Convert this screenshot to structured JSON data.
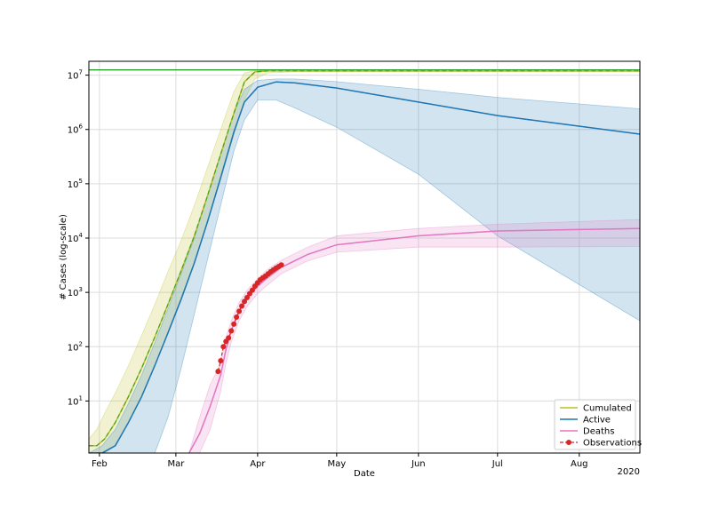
{
  "chart_data": {
    "type": "line",
    "xlabel": "Date",
    "ylabel": "# Cases (log-scale)",
    "year_label": "2020",
    "y_scale": "log",
    "ylim": [
      1.1,
      18000000
    ],
    "xlim": [
      "2020-01-28",
      "2020-08-24"
    ],
    "grid": true,
    "legend_position": "lower-right",
    "x_ticks": [
      {
        "date": "2020-02-01",
        "label": "Feb"
      },
      {
        "date": "2020-03-01",
        "label": "Mar"
      },
      {
        "date": "2020-04-01",
        "label": "Apr"
      },
      {
        "date": "2020-05-01",
        "label": "May"
      },
      {
        "date": "2020-06-01",
        "label": "Jun"
      },
      {
        "date": "2020-07-01",
        "label": "Jul"
      },
      {
        "date": "2020-08-01",
        "label": "Aug"
      }
    ],
    "y_ticks": [
      {
        "value": 10,
        "base": "10",
        "exp": "1"
      },
      {
        "value": 100,
        "base": "10",
        "exp": "2"
      },
      {
        "value": 1000,
        "base": "10",
        "exp": "3"
      },
      {
        "value": 10000,
        "base": "10",
        "exp": "4"
      },
      {
        "value": 100000,
        "base": "10",
        "exp": "5"
      },
      {
        "value": 1000000,
        "base": "10",
        "exp": "6"
      },
      {
        "value": 10000000,
        "base": "10",
        "exp": "7"
      }
    ],
    "population_line": {
      "value": 12500000,
      "color": "#2ca02c"
    },
    "series": [
      {
        "name": "Cumulated",
        "color": "#bcbd22",
        "dashed_color": "#2ca02c",
        "x": [
          "2020-01-28",
          "2020-01-31",
          "2020-02-03",
          "2020-02-07",
          "2020-02-12",
          "2020-02-17",
          "2020-02-22",
          "2020-02-27",
          "2020-03-03",
          "2020-03-08",
          "2020-03-13",
          "2020-03-18",
          "2020-03-23",
          "2020-03-27",
          "2020-03-31",
          "2020-04-05",
          "2020-04-15",
          "2020-05-01",
          "2020-06-01",
          "2020-07-01",
          "2020-08-24"
        ],
        "values": [
          1.5,
          1.5,
          2,
          4,
          12,
          40,
          150,
          600,
          2500,
          11000,
          60000,
          350000,
          2000000,
          7500000,
          11500000,
          12000000,
          12000000,
          12000000,
          12000000,
          12000000,
          12000000
        ],
        "lower": [
          1.1,
          1.1,
          1.1,
          1.5,
          4,
          12,
          45,
          180,
          700,
          3500,
          20000,
          120000,
          800000,
          3500000,
          8500000,
          11000000,
          11500000,
          11500000,
          11500000,
          11500000,
          11500000
        ],
        "upper": [
          2,
          3,
          6,
          14,
          45,
          160,
          600,
          2400,
          9000,
          40000,
          200000,
          1000000,
          5000000,
          11000000,
          12200000,
          12300000,
          12300000,
          12300000,
          12300000,
          12300000,
          12300000
        ]
      },
      {
        "name": "Active",
        "color": "#1f77b4",
        "x": [
          "2020-01-28",
          "2020-02-02",
          "2020-02-07",
          "2020-02-12",
          "2020-02-17",
          "2020-02-22",
          "2020-02-27",
          "2020-03-03",
          "2020-03-08",
          "2020-03-13",
          "2020-03-18",
          "2020-03-23",
          "2020-03-27",
          "2020-04-01",
          "2020-04-08",
          "2020-04-15",
          "2020-05-01",
          "2020-06-01",
          "2020-07-01",
          "2020-08-24"
        ],
        "values": [
          1.1,
          1.1,
          1.5,
          4,
          12,
          45,
          180,
          750,
          3500,
          20000,
          130000,
          900000,
          3200000,
          6000000,
          7500000,
          7200000,
          5800000,
          3200000,
          1800000,
          820000
        ],
        "lower": [
          1.1,
          1.1,
          1.1,
          1.1,
          1.1,
          1.1,
          5,
          40,
          400,
          4000,
          40000,
          400000,
          1500000,
          3500000,
          3500000,
          2500000,
          1100000,
          150000,
          11000,
          300
        ],
        "upper": [
          1.1,
          1.5,
          3,
          9,
          30,
          120,
          500,
          2200,
          10000,
          60000,
          350000,
          2000000,
          5500000,
          8000000,
          8500000,
          8500000,
          7600000,
          5500000,
          3900000,
          2400000
        ]
      },
      {
        "name": "Deaths",
        "color": "#e377c2",
        "x": [
          "2020-03-06",
          "2020-03-10",
          "2020-03-14",
          "2020-03-18",
          "2020-03-20",
          "2020-03-22",
          "2020-03-25",
          "2020-03-28",
          "2020-04-01",
          "2020-04-05",
          "2020-04-10",
          "2020-04-20",
          "2020-05-01",
          "2020-06-01",
          "2020-07-01",
          "2020-08-24"
        ],
        "values": [
          1.1,
          2.5,
          8,
          30,
          90,
          200,
          450,
          800,
          1300,
          1900,
          2900,
          5000,
          7500,
          11000,
          13500,
          15000
        ],
        "lower": [
          1.1,
          1.1,
          3,
          15,
          50,
          120,
          300,
          550,
          950,
          1400,
          2200,
          3800,
          5500,
          6800,
          6800,
          7000
        ],
        "upper": [
          1.1,
          5,
          20,
          50,
          150,
          300,
          650,
          1100,
          1800,
          2700,
          3900,
          6800,
          11000,
          15000,
          18000,
          22000
        ]
      }
    ],
    "observations": {
      "name": "Observations",
      "color": "#d62728",
      "x": [
        "2020-03-17",
        "2020-03-18",
        "2020-03-19",
        "2020-03-20",
        "2020-03-21",
        "2020-03-22",
        "2020-03-23",
        "2020-03-24",
        "2020-03-25",
        "2020-03-26",
        "2020-03-27",
        "2020-03-28",
        "2020-03-29",
        "2020-03-30",
        "2020-03-31",
        "2020-04-01",
        "2020-04-02",
        "2020-04-03",
        "2020-04-04",
        "2020-04-05",
        "2020-04-06",
        "2020-04-07",
        "2020-04-08",
        "2020-04-09",
        "2020-04-10"
      ],
      "values": [
        35,
        55,
        100,
        125,
        145,
        195,
        260,
        350,
        450,
        560,
        680,
        800,
        950,
        1100,
        1300,
        1500,
        1700,
        1850,
        2000,
        2200,
        2400,
        2600,
        2800,
        3000,
        3200
      ]
    }
  }
}
